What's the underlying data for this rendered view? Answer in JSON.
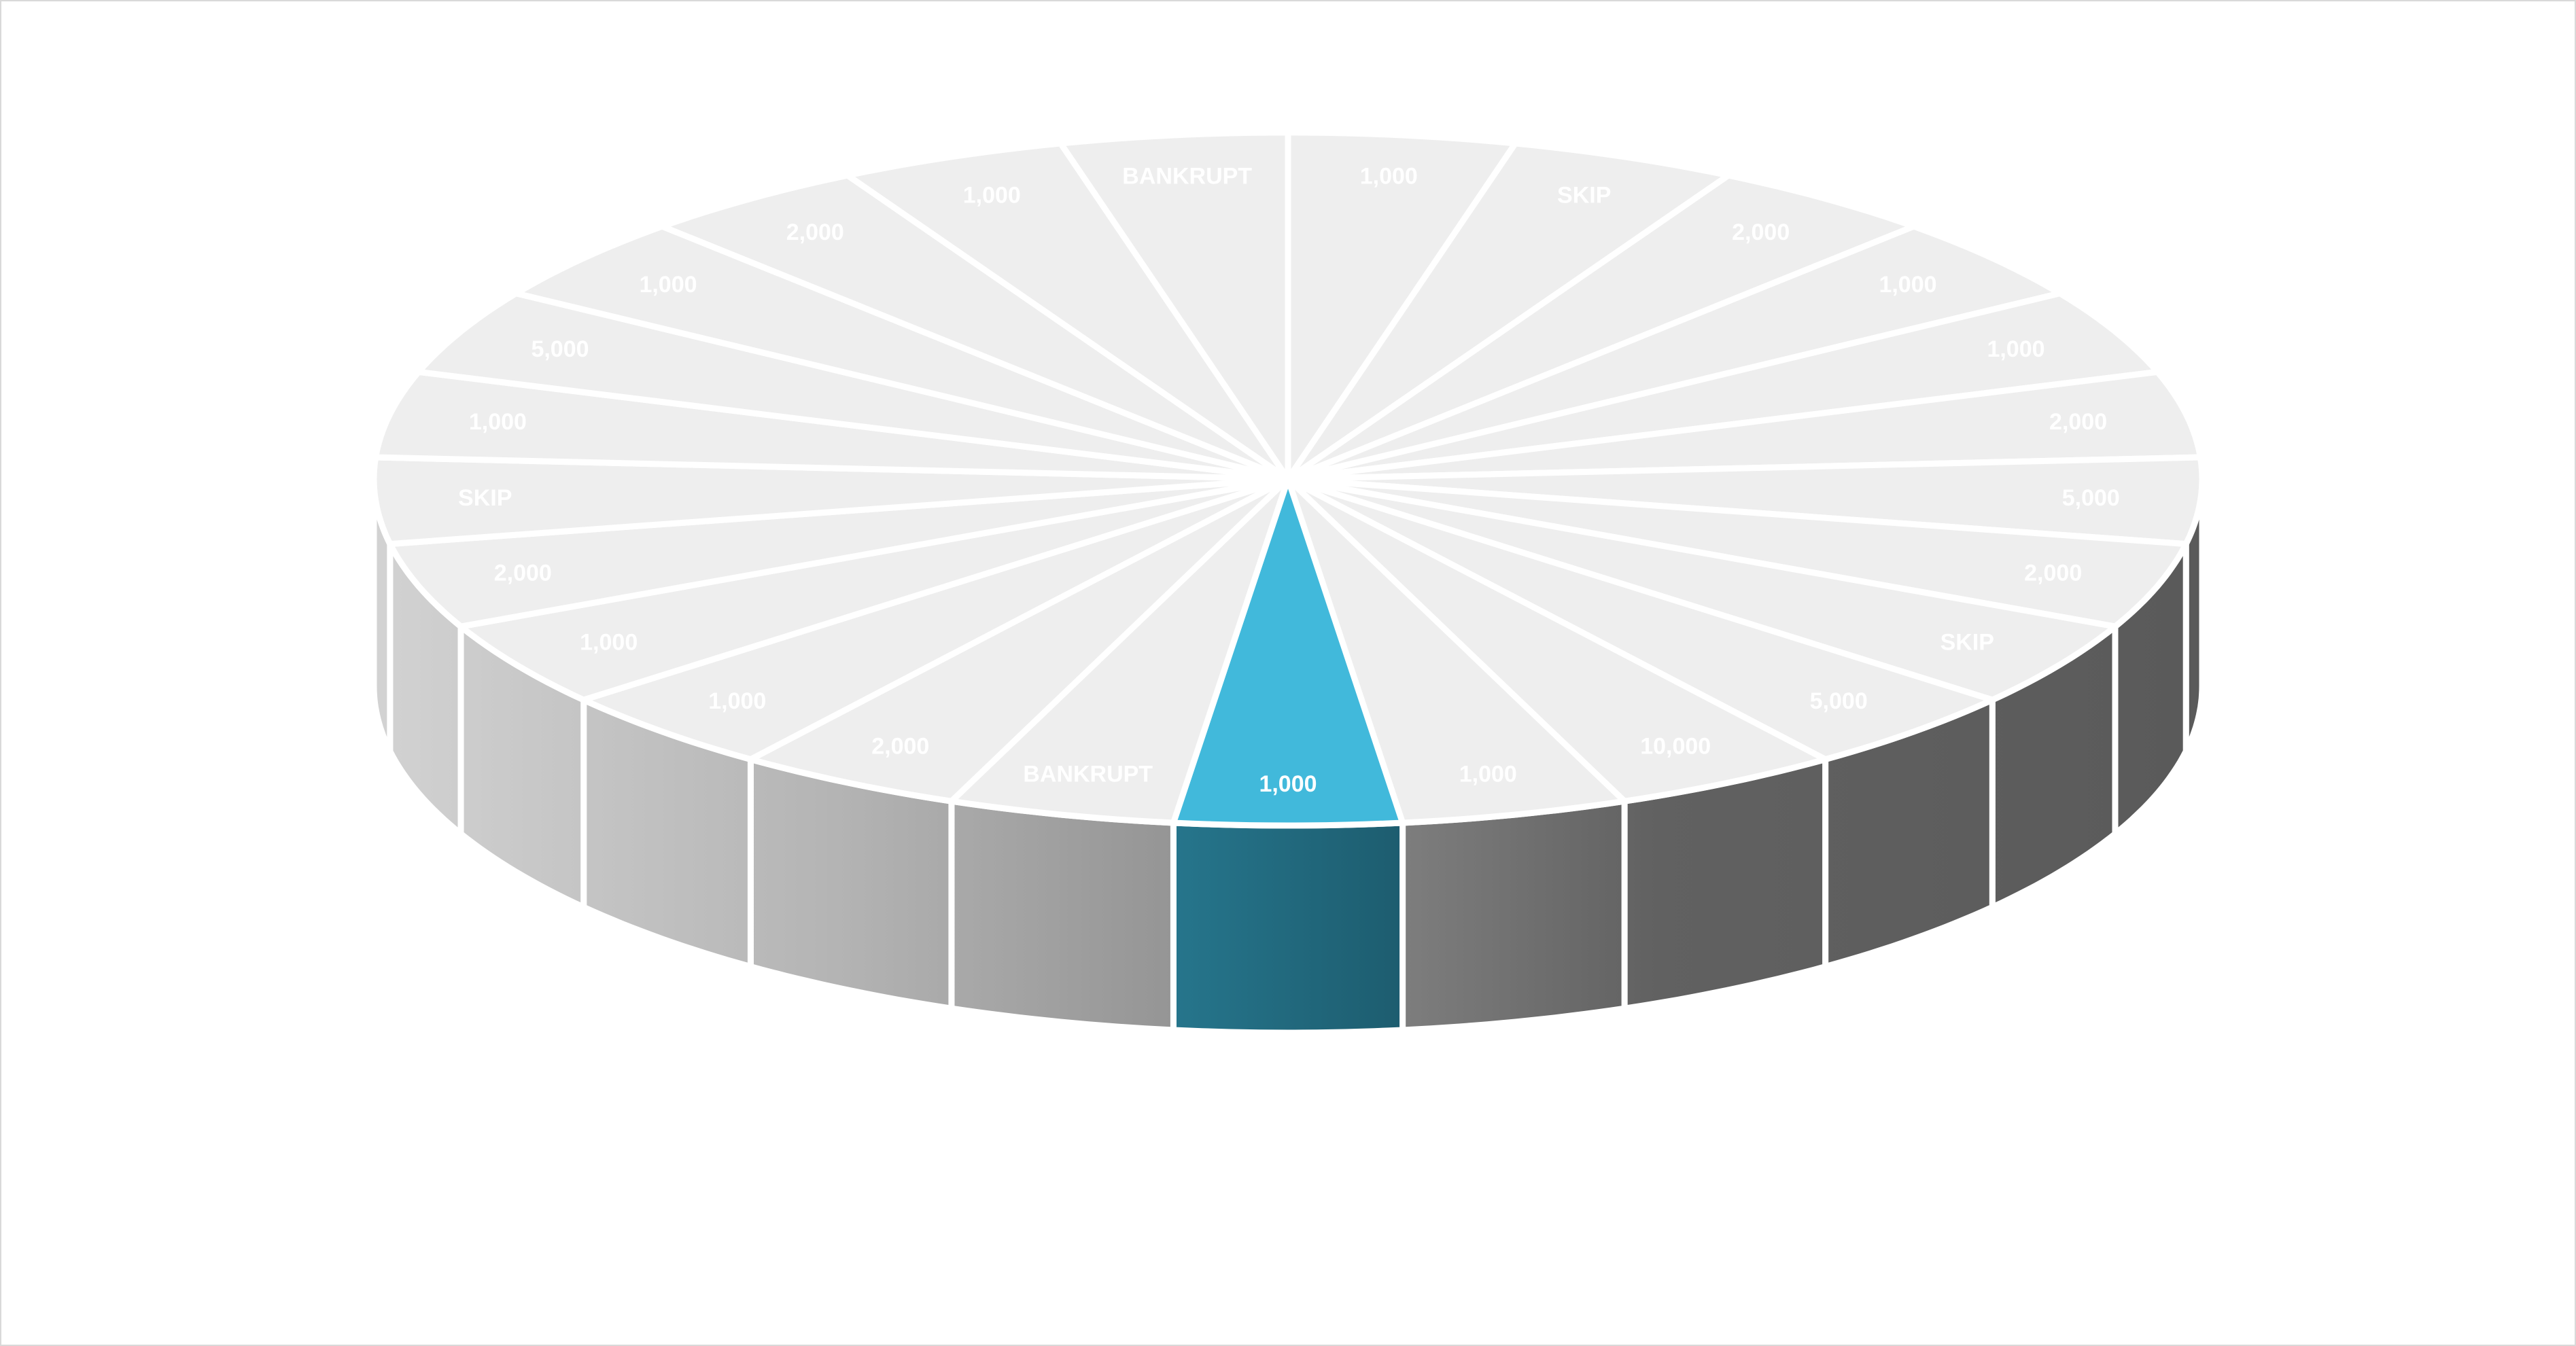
{
  "wheel": {
    "segments": [
      "1,000",
      "SKIP",
      "2,000",
      "1,000",
      "1,000",
      "2,000",
      "5,000",
      "2,000",
      "SKIP",
      "5,000",
      "10,000",
      "1,000",
      "1,000",
      "BANKRUPT",
      "2,000",
      "1,000",
      "1,000",
      "2,000",
      "SKIP",
      "1,000",
      "5,000",
      "1,000",
      "2,000",
      "1,000",
      "BANKRUPT"
    ],
    "highlighted_index": 12,
    "colors": {
      "top_face": "#eeeeee",
      "divider": "#ffffff",
      "highlight_top": "#41b9db",
      "highlight_side": "#1f6b7e",
      "side_light": "#cfcfcf",
      "side_dark": "#5e5e5e",
      "label": "#ffffff",
      "border": "#d9d9d9"
    }
  }
}
